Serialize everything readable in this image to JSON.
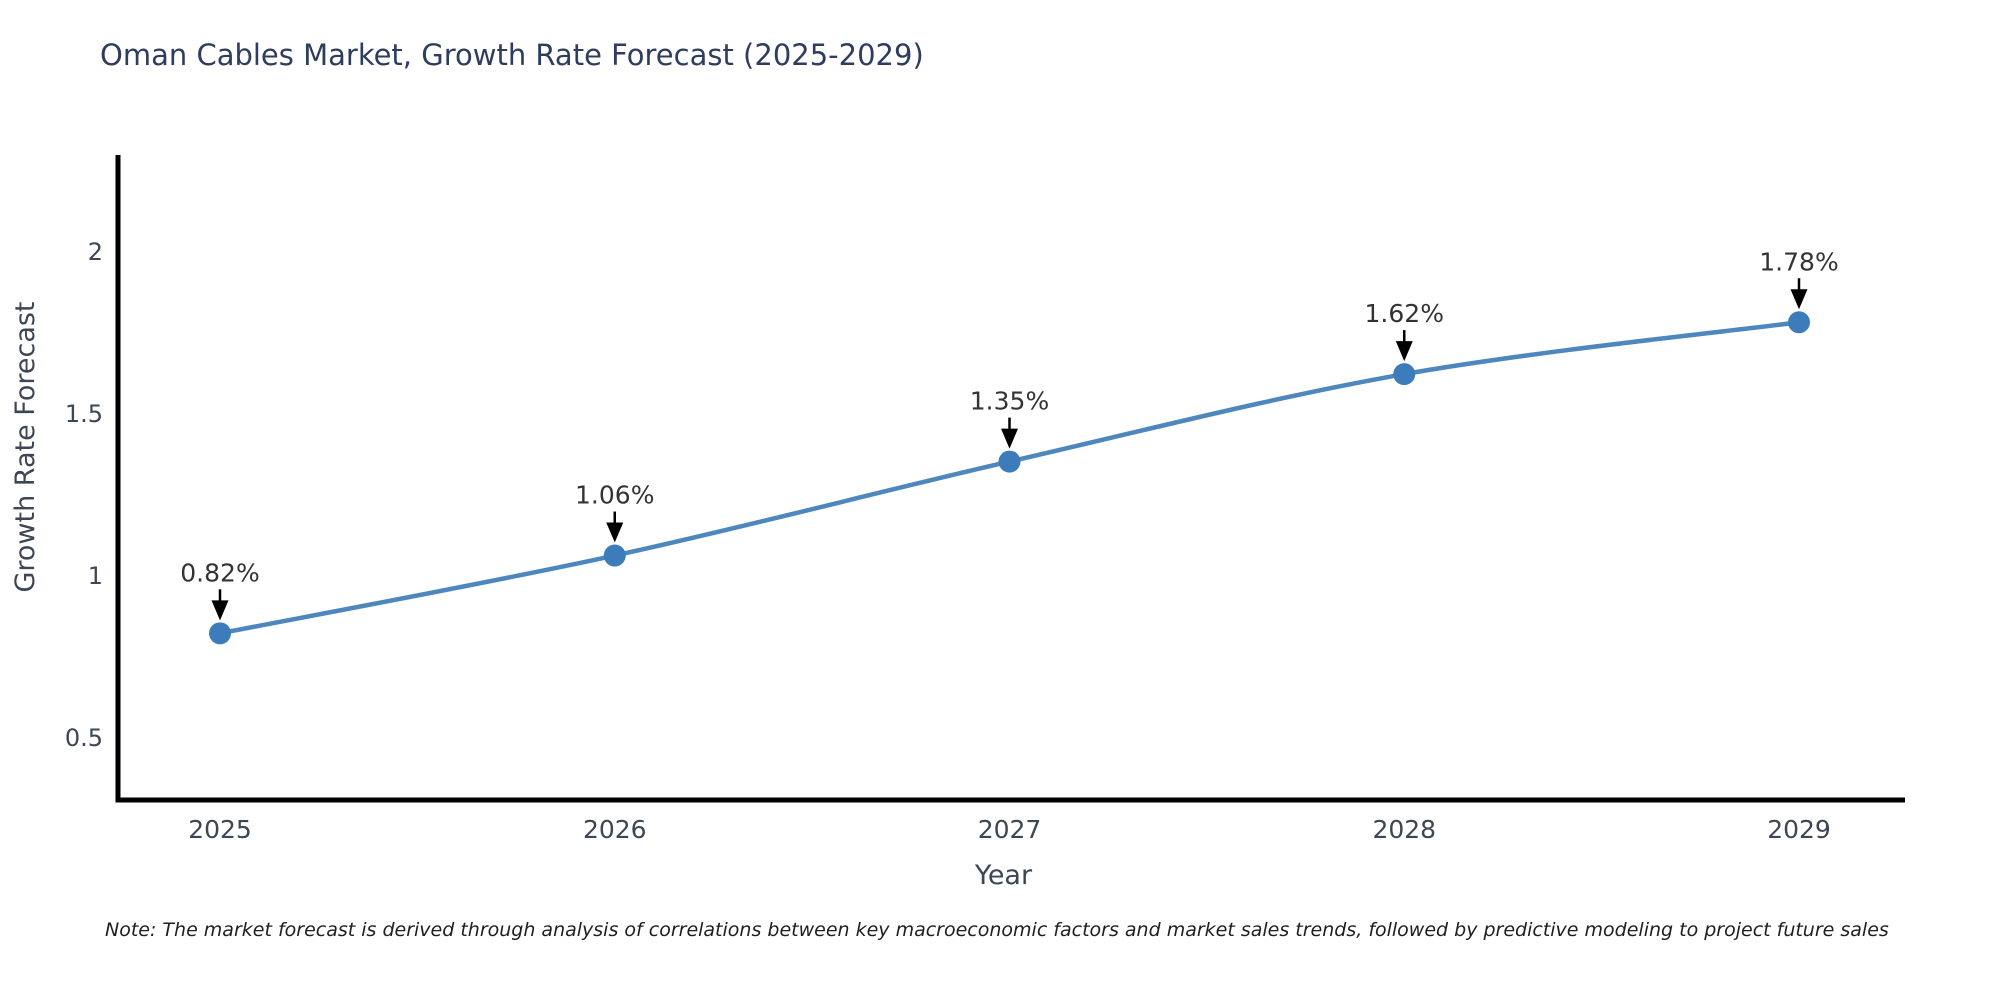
{
  "title": "Oman Cables Market, Growth Rate Forecast (2025-2029)",
  "note": "Note: The market forecast is derived through analysis of correlations between key macroeconomic factors and market sales trends, followed by predictive modeling to project future sales",
  "chart_data": {
    "type": "line",
    "title": "Oman Cables Market, Growth Rate Forecast (2025-2029)",
    "xlabel": "Year",
    "ylabel": "Growth Rate Forecast",
    "x": [
      2025,
      2026,
      2027,
      2028,
      2029
    ],
    "xtick_labels": [
      "2025",
      "2026",
      "2027",
      "2028",
      "2029"
    ],
    "series": [
      {
        "name": "Growth Rate Forecast",
        "values": [
          0.82,
          1.06,
          1.35,
          1.62,
          1.78
        ]
      }
    ],
    "point_labels": [
      "0.82%",
      "1.06%",
      "1.35%",
      "1.62%",
      "1.78%"
    ],
    "yticks": [
      0.5,
      1,
      1.5,
      2
    ],
    "ytick_labels": [
      "0.5",
      "1",
      "1.5",
      "2"
    ],
    "ylim": [
      0.3,
      2.3
    ],
    "grid": false,
    "legend": "none",
    "line_shape": "spline",
    "annotations_arrow": true,
    "colors": {
      "line": "#4d87be",
      "marker": "#3d7cba",
      "spine": "#000000",
      "arrow": "#000000",
      "title_text": "#2e3c5e",
      "axis_text": "#3d4654",
      "annotation_text": "#333333",
      "background": "#ffffff"
    }
  }
}
